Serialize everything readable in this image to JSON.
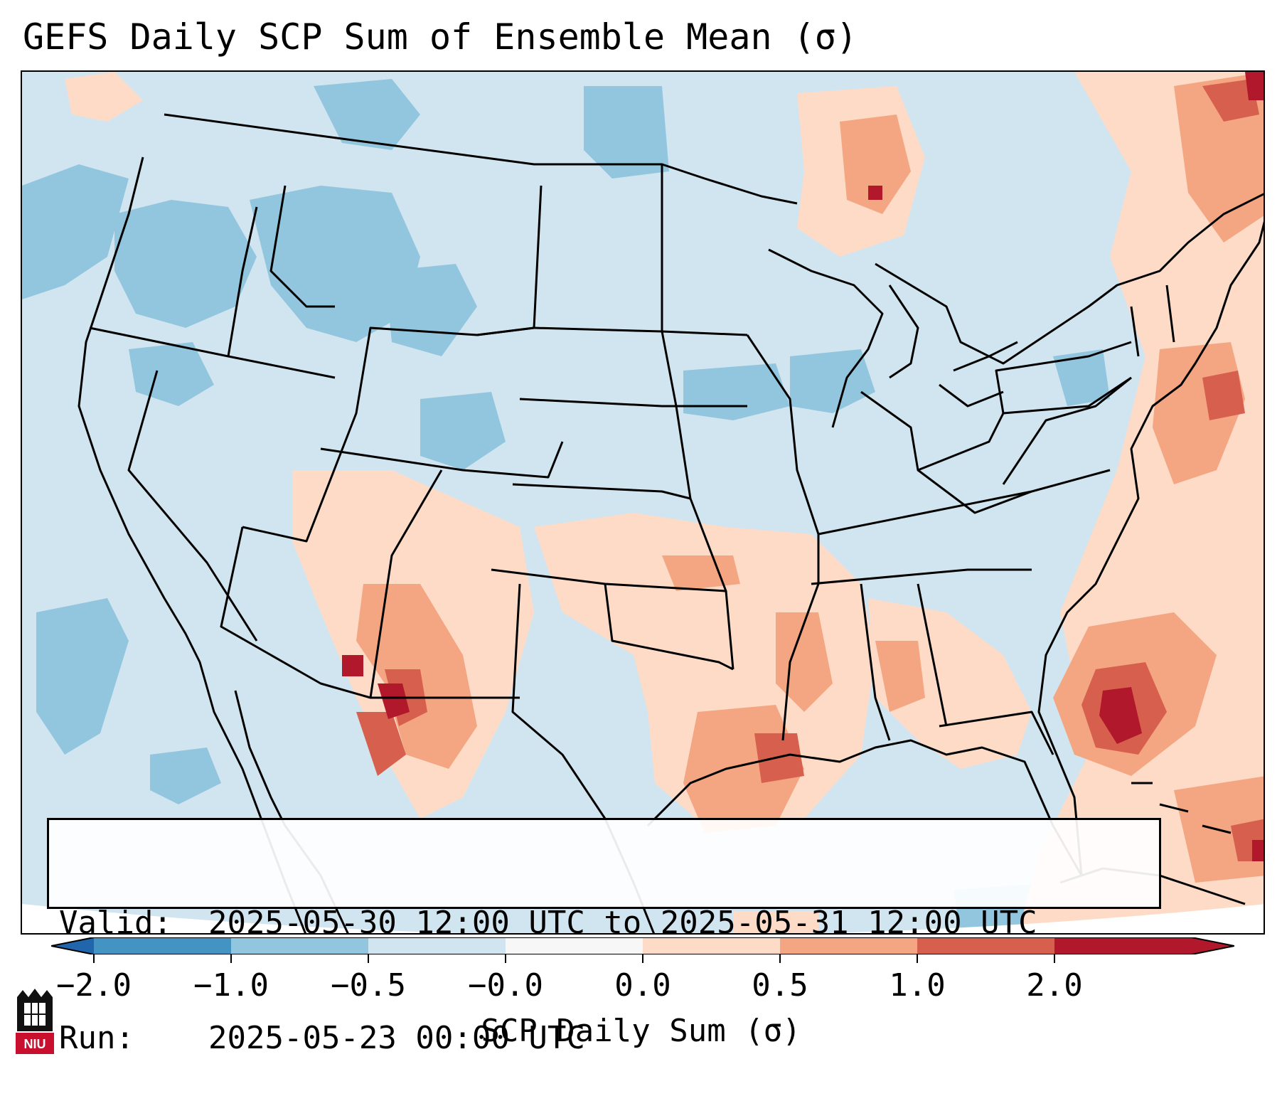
{
  "title": "GEFS Daily SCP Sum of Ensemble Mean (σ)",
  "info": {
    "valid_label": "Valid:",
    "valid_value": "2025-05-30 12:00 UTC to 2025-05-31 12:00 UTC",
    "run_label": "Run:",
    "run_value": "2025-05-23 00:00 UTC"
  },
  "colorbar": {
    "label": "SCP Daily Sum (σ)",
    "ticks": [
      "−2.0",
      "−1.0",
      "−0.5",
      "−0.0",
      "0.0",
      "0.5",
      "1.0",
      "2.0"
    ],
    "colors": [
      "#4393c3",
      "#92c5de",
      "#d1e5f0",
      "#f7f7f7",
      "#fddbc7",
      "#f4a582",
      "#d6604d",
      "#b2182b"
    ],
    "under_color": "#2166ac",
    "over_color": "#b2182b"
  },
  "logo": {
    "text": "NIU",
    "color": "#c8102e"
  }
}
